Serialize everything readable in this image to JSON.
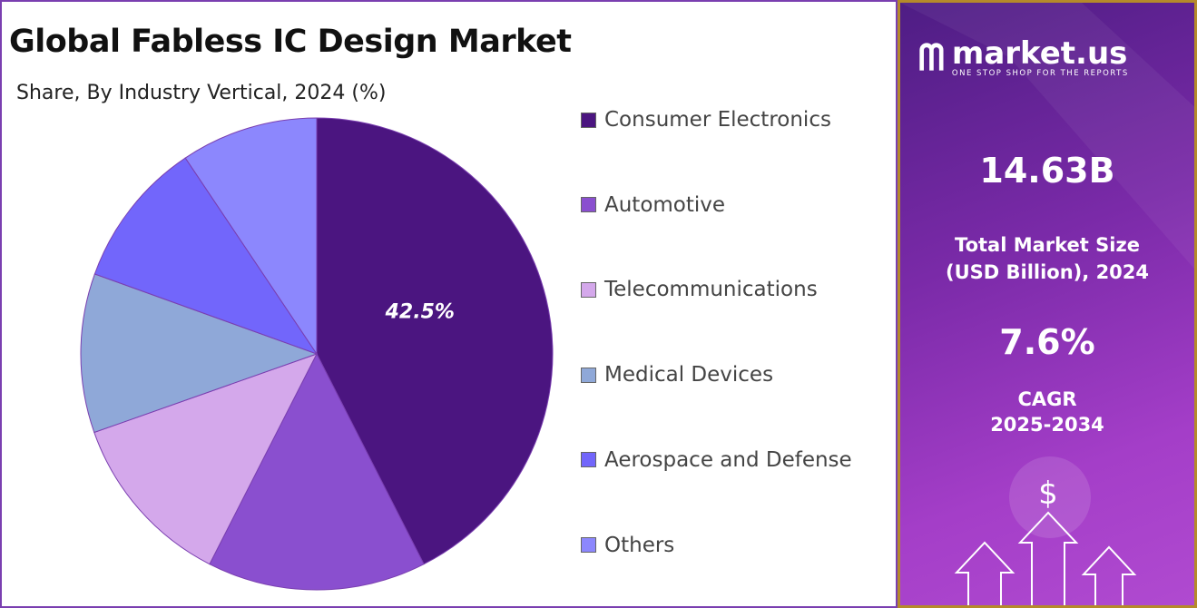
{
  "chart_data": {
    "type": "pie",
    "title": "Global Fabless IC Design Market",
    "subtitle": "Share, By Industry Vertical, 2024 (%)",
    "legend_position": "right",
    "slices": [
      {
        "name": "Consumer Electronics",
        "value": 42.5,
        "color": "#4b1580",
        "label": "42.5%"
      },
      {
        "name": "Automotive",
        "value": 15.0,
        "color": "#8a4fcf"
      },
      {
        "name": "Telecommunications",
        "value": 12.1,
        "color": "#d4a8eb"
      },
      {
        "name": "Medical Devices",
        "value": 10.9,
        "color": "#8fa8d8"
      },
      {
        "name": "Aerospace and Defense",
        "value": 10.1,
        "color": "#7266fb"
      },
      {
        "name": "Others",
        "value": 9.4,
        "color": "#8c87fd"
      }
    ]
  },
  "panel": {
    "brand": "market.us",
    "tagline": "ONE STOP SHOP FOR THE REPORTS",
    "market_size": "14.63B",
    "market_size_label_1": "Total Market Size",
    "market_size_label_2": "(USD Billion), 2024",
    "cagr": "7.6%",
    "cagr_label_1": "CAGR",
    "cagr_label_2": "2025-2034",
    "dollar_sign": "$"
  }
}
